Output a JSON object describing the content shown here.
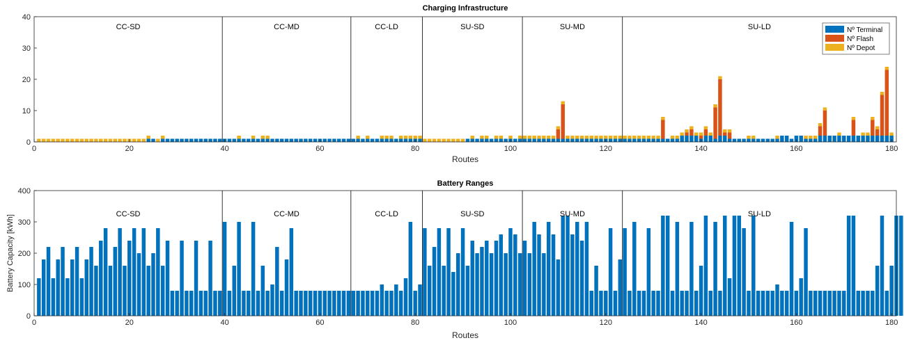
{
  "chart_data": [
    {
      "type": "bar",
      "stacked": true,
      "title": "Charging Infrastructure",
      "xlabel": "Routes",
      "ylabel": "",
      "xlim": [
        0,
        181
      ],
      "ylim": [
        0,
        40
      ],
      "xticks": [
        0,
        20,
        40,
        60,
        80,
        100,
        120,
        140,
        160,
        180
      ],
      "yticks": [
        0,
        10,
        20,
        30,
        40
      ],
      "legend_position": "top-right",
      "series": [
        {
          "name": "Nº Terminal",
          "color": "#0072BD",
          "values": [
            0,
            0,
            0,
            0,
            0,
            0,
            0,
            0,
            0,
            0,
            0,
            0,
            0,
            0,
            0,
            0,
            0,
            0,
            0,
            0,
            0,
            0,
            0,
            1,
            1,
            0,
            1,
            1,
            1,
            1,
            1,
            1,
            1,
            1,
            1,
            1,
            1,
            1,
            1,
            1,
            1,
            1,
            1,
            1,
            1,
            1,
            1,
            1,
            1,
            1,
            1,
            1,
            1,
            1,
            1,
            1,
            1,
            1,
            1,
            1,
            1,
            1,
            1,
            1,
            1,
            1,
            1,
            1,
            1,
            1,
            1,
            1,
            1,
            1,
            1,
            1,
            1,
            1,
            1,
            1,
            1,
            0,
            0,
            0,
            0,
            0,
            0,
            0,
            0,
            0,
            1,
            1,
            1,
            1,
            1,
            1,
            1,
            1,
            1,
            1,
            1,
            1,
            1,
            1,
            1,
            1,
            1,
            1,
            1,
            1,
            1,
            1,
            1,
            1,
            1,
            1,
            1,
            1,
            1,
            1,
            1,
            1,
            1,
            1,
            1,
            1,
            1,
            1,
            1,
            1,
            1,
            1,
            1,
            1,
            1,
            2,
            2,
            2,
            2,
            1,
            2,
            2,
            1,
            2,
            2,
            1,
            1,
            1,
            1,
            1,
            1,
            1,
            1,
            1,
            1,
            1,
            2,
            2,
            1,
            2,
            2,
            1,
            1,
            1,
            2,
            2,
            2,
            2,
            2,
            2,
            2,
            2,
            2,
            2,
            2,
            2,
            2,
            2,
            2,
            2
          ]
        },
        {
          "name": "Nº Flash",
          "color": "#D95319",
          "values": [
            0,
            0,
            0,
            0,
            0,
            0,
            0,
            0,
            0,
            0,
            0,
            0,
            0,
            0,
            0,
            0,
            0,
            0,
            0,
            0,
            0,
            0,
            0,
            0,
            0,
            0,
            0,
            0,
            0,
            0,
            0,
            0,
            0,
            0,
            0,
            0,
            0,
            0,
            0,
            0,
            0,
            0,
            0,
            0,
            0,
            0,
            0,
            0,
            0,
            0,
            0,
            0,
            0,
            0,
            0,
            0,
            0,
            0,
            0,
            0,
            0,
            0,
            0,
            0,
            0,
            0,
            0,
            0,
            0,
            0,
            0,
            0,
            0,
            0,
            0,
            0,
            0,
            0,
            0,
            0,
            0,
            0,
            0,
            0,
            0,
            0,
            0,
            0,
            0,
            0,
            0,
            0,
            0,
            0,
            0,
            0,
            0,
            0,
            0,
            0,
            0,
            0,
            0,
            0,
            0,
            0,
            0,
            0,
            0,
            3,
            11,
            0,
            0,
            0,
            0,
            0,
            0,
            0,
            0,
            0,
            0,
            0,
            0,
            0,
            0,
            0,
            0,
            0,
            0,
            0,
            0,
            6,
            0,
            0,
            0,
            0,
            1,
            2,
            0,
            1,
            2,
            0,
            10,
            18,
            1,
            2,
            0,
            0,
            0,
            0,
            0,
            0,
            0,
            0,
            0,
            0,
            0,
            0,
            0,
            0,
            0,
            0,
            0,
            0,
            3,
            8,
            0,
            0,
            0,
            0,
            0,
            5,
            0,
            0,
            0,
            5,
            2,
            13,
            21,
            0,
            0,
            5
          ]
        },
        {
          "name": "Nº Depot",
          "color": "#EDB120",
          "values": [
            1,
            1,
            1,
            1,
            1,
            1,
            1,
            1,
            1,
            1,
            1,
            1,
            1,
            1,
            1,
            1,
            1,
            1,
            1,
            1,
            1,
            1,
            1,
            1,
            0,
            1,
            1,
            0,
            0,
            0,
            0,
            0,
            0,
            0,
            0,
            0,
            0,
            0,
            0,
            0,
            0,
            0,
            1,
            0,
            0,
            1,
            0,
            1,
            1,
            0,
            0,
            0,
            0,
            0,
            0,
            0,
            0,
            0,
            0,
            0,
            0,
            0,
            0,
            0,
            0,
            0,
            0,
            1,
            0,
            1,
            0,
            0,
            1,
            1,
            1,
            0,
            1,
            1,
            1,
            1,
            1,
            1,
            1,
            1,
            1,
            1,
            1,
            1,
            1,
            1,
            0,
            1,
            0,
            1,
            1,
            0,
            1,
            1,
            0,
            1,
            0,
            1,
            1,
            1,
            1,
            1,
            1,
            1,
            1,
            1,
            1,
            1,
            1,
            1,
            1,
            1,
            1,
            1,
            1,
            1,
            1,
            1,
            1,
            1,
            1,
            1,
            1,
            1,
            1,
            1,
            1,
            1,
            0,
            1,
            1,
            1,
            1,
            1,
            1,
            1,
            1,
            1,
            1,
            1,
            1,
            1,
            0,
            0,
            0,
            1,
            1,
            0,
            0,
            0,
            0,
            1,
            0,
            0,
            0,
            0,
            0,
            1,
            1,
            1,
            1,
            1,
            0,
            0,
            1,
            0,
            0,
            1,
            0,
            1,
            1,
            1,
            1,
            1,
            1,
            1,
            1,
            1
          ]
        }
      ],
      "groups": [
        {
          "label": "CC-SD",
          "start": 0,
          "end": 39.5
        },
        {
          "label": "CC-MD",
          "start": 39.5,
          "end": 66.5
        },
        {
          "label": "CC-LD",
          "start": 66.5,
          "end": 81.5
        },
        {
          "label": "SU-SD",
          "start": 81.5,
          "end": 102.5
        },
        {
          "label": "SU-MD",
          "start": 102.5,
          "end": 123.5
        },
        {
          "label": "SU-LD",
          "start": 123.5,
          "end": 181
        }
      ]
    },
    {
      "type": "bar",
      "title": "Battery Ranges",
      "xlabel": "Routes",
      "ylabel": "Battery Capacity [kWh]",
      "xlim": [
        0,
        181
      ],
      "ylim": [
        0,
        400
      ],
      "xticks": [
        0,
        20,
        40,
        60,
        80,
        100,
        120,
        140,
        160,
        180
      ],
      "yticks": [
        0,
        100,
        200,
        300,
        400
      ],
      "series": [
        {
          "color": "#0072BD",
          "values": [
            120,
            180,
            220,
            120,
            180,
            220,
            120,
            180,
            220,
            120,
            180,
            220,
            160,
            240,
            280,
            160,
            220,
            280,
            160,
            240,
            280,
            200,
            280,
            160,
            200,
            280,
            160,
            240,
            80,
            80,
            240,
            80,
            80,
            240,
            80,
            80,
            240,
            80,
            80,
            300,
            80,
            160,
            300,
            80,
            80,
            300,
            80,
            160,
            80,
            100,
            220,
            80,
            180,
            280,
            80,
            80,
            80,
            80,
            80,
            80,
            80,
            80,
            80,
            80,
            80,
            80,
            80,
            80,
            80,
            80,
            80,
            80,
            100,
            80,
            80,
            100,
            80,
            120,
            300,
            80,
            100,
            280,
            160,
            220,
            280,
            160,
            280,
            140,
            200,
            280,
            160,
            240,
            200,
            220,
            240,
            200,
            240,
            260,
            200,
            280,
            260,
            200,
            240,
            200,
            300,
            260,
            200,
            300,
            260,
            180,
            320,
            320,
            260,
            300,
            240,
            300,
            80,
            160,
            80,
            80,
            280,
            80,
            180,
            280,
            80,
            300,
            80,
            80,
            280,
            80,
            80,
            320,
            320,
            80,
            300,
            80,
            80,
            300,
            80,
            160,
            320,
            80,
            300,
            80,
            320,
            120,
            320,
            320,
            280,
            80,
            320,
            80,
            80,
            80,
            80,
            100,
            80,
            80,
            300,
            80,
            120,
            280,
            80,
            80,
            80,
            80,
            80,
            80,
            80,
            80,
            320,
            320,
            80,
            80,
            80,
            80,
            160,
            320,
            80,
            160,
            320,
            320,
            320,
            320,
            80,
            160,
            320
          ]
        }
      ],
      "groups": [
        {
          "label": "CC-SD",
          "start": 0,
          "end": 39.5
        },
        {
          "label": "CC-MD",
          "start": 39.5,
          "end": 66.5
        },
        {
          "label": "CC-LD",
          "start": 66.5,
          "end": 81.5
        },
        {
          "label": "SU-SD",
          "start": 81.5,
          "end": 102.5
        },
        {
          "label": "SU-MD",
          "start": 102.5,
          "end": 123.5
        },
        {
          "label": "SU-LD",
          "start": 123.5,
          "end": 181
        }
      ]
    }
  ]
}
